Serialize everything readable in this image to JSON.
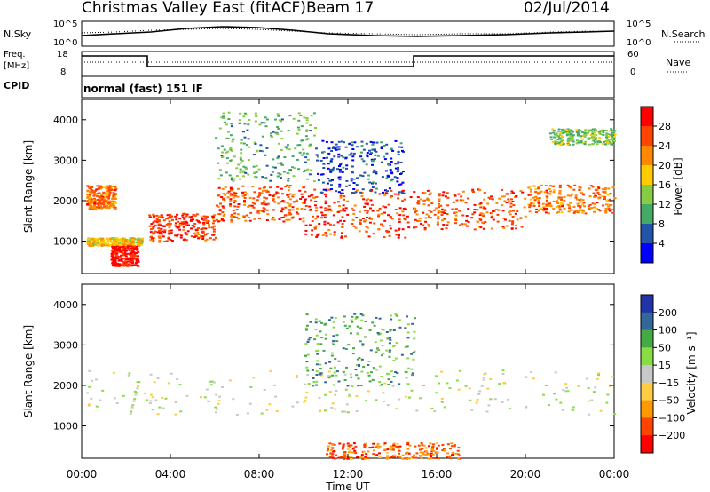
{
  "header": {
    "station": "Christmas Valley East (fitACF)",
    "beam": "Beam 17",
    "date": "02/Jul/2014"
  },
  "top_panels": {
    "nsky_label": "N.Sky",
    "nsky_ticks": [
      "10^5",
      "10^0"
    ],
    "nsearch_label": "N.Search",
    "nsearch_ticks": [
      "10^5",
      "10^0"
    ],
    "freq_label_1": "Freq.",
    "freq_label_2": "[MHz]",
    "freq_ticks": [
      "18",
      "8"
    ],
    "nave_label": "Nave",
    "nave_ticks": [
      "60",
      "0"
    ],
    "cpid_label": "CPID",
    "cpid_text": "normal (fast) 151 IF"
  },
  "chart_data": [
    {
      "type": "heatmap",
      "name": "power-panel",
      "ylabel": "Slant Range [km]",
      "ylim": [
        200,
        4500
      ],
      "yticks": [
        1000,
        2000,
        3000,
        4000
      ],
      "xlim": [
        0,
        24
      ],
      "colorbar": {
        "label": "Power [dB]",
        "ticks": [
          "28",
          "24",
          "20",
          "16",
          "12",
          "8",
          "4"
        ],
        "colors": [
          "#ff0000",
          "#ff4400",
          "#ff8800",
          "#ffcc00",
          "#88cc44",
          "#44aa66",
          "#2255aa",
          "#0000ff"
        ]
      },
      "bands": [
        {
          "t0": 0.2,
          "t1": 1.5,
          "r0": 1800,
          "r1": 2400,
          "level": 0.75
        },
        {
          "t0": 0.2,
          "t1": 2.7,
          "r0": 900,
          "r1": 1100,
          "level": 0.6
        },
        {
          "t0": 1.3,
          "t1": 2.5,
          "r0": 400,
          "r1": 900,
          "level": 0.95
        },
        {
          "t0": 3.0,
          "t1": 6.0,
          "r0": 1000,
          "r1": 1700,
          "level": 0.85
        },
        {
          "t0": 6.0,
          "t1": 10.0,
          "r0": 1500,
          "r1": 2400,
          "level": 0.8
        },
        {
          "t0": 10.0,
          "t1": 15.0,
          "r0": 1100,
          "r1": 2300,
          "level": 0.85
        },
        {
          "t0": 15.0,
          "t1": 20.0,
          "r0": 1300,
          "r1": 2300,
          "level": 0.8
        },
        {
          "t0": 20.0,
          "t1": 24.0,
          "r0": 1700,
          "r1": 2400,
          "level": 0.75
        },
        {
          "t0": 6.0,
          "t1": 10.5,
          "r0": 2500,
          "r1": 4200,
          "level": 0.35
        },
        {
          "t0": 10.5,
          "t1": 14.5,
          "r0": 2200,
          "r1": 3500,
          "level": 0.15
        },
        {
          "t0": 21.0,
          "t1": 24.0,
          "r0": 3400,
          "r1": 3800,
          "level": 0.4
        }
      ]
    },
    {
      "type": "heatmap",
      "name": "velocity-panel",
      "ylabel": "Slant Range [km]",
      "ylim": [
        200,
        4500
      ],
      "yticks": [
        1000,
        2000,
        3000,
        4000
      ],
      "xlim": [
        0,
        24
      ],
      "xticks": [
        "00:00",
        "04:00",
        "08:00",
        "12:00",
        "16:00",
        "20:00",
        "00:00"
      ],
      "xlabel": "Time UT",
      "colorbar": {
        "label": "Velocity [m s⁻¹]",
        "ticks": [
          "200",
          "100",
          "50",
          "15",
          "−15",
          "−50",
          "−100",
          "−200"
        ],
        "colors": [
          "#2233aa",
          "#336699",
          "#44aa44",
          "#88dd44",
          "#c8c8c8",
          "#ffcc44",
          "#ff9900",
          "#ff4400",
          "#ff0000"
        ]
      },
      "bands": [
        {
          "t0": 0.2,
          "t1": 24.0,
          "r0": 1300,
          "r1": 2400,
          "level": 0.5
        },
        {
          "t0": 10.0,
          "t1": 15.0,
          "r0": 2000,
          "r1": 3800,
          "level": 0.3
        },
        {
          "t0": 11.0,
          "t1": 17.0,
          "r0": 200,
          "r1": 600,
          "level": 0.8
        }
      ]
    }
  ]
}
